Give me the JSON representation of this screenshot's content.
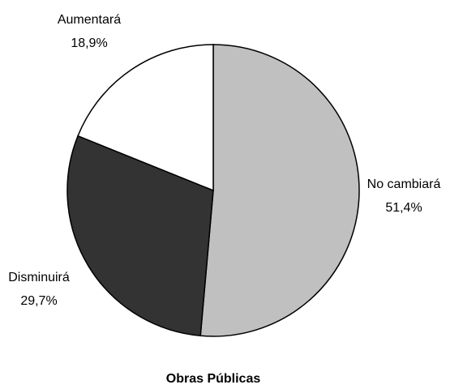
{
  "chart_data": {
    "type": "pie",
    "title": "Obras Públicas",
    "categories": [
      "No cambiará",
      "Disminuirá",
      "Aumentará"
    ],
    "values": [
      51.4,
      29.7,
      18.9
    ],
    "value_labels": [
      "51,4%",
      "29,7%",
      "18,9%"
    ],
    "colors": [
      "#c0c0c0",
      "#333333",
      "#ffffff"
    ]
  }
}
